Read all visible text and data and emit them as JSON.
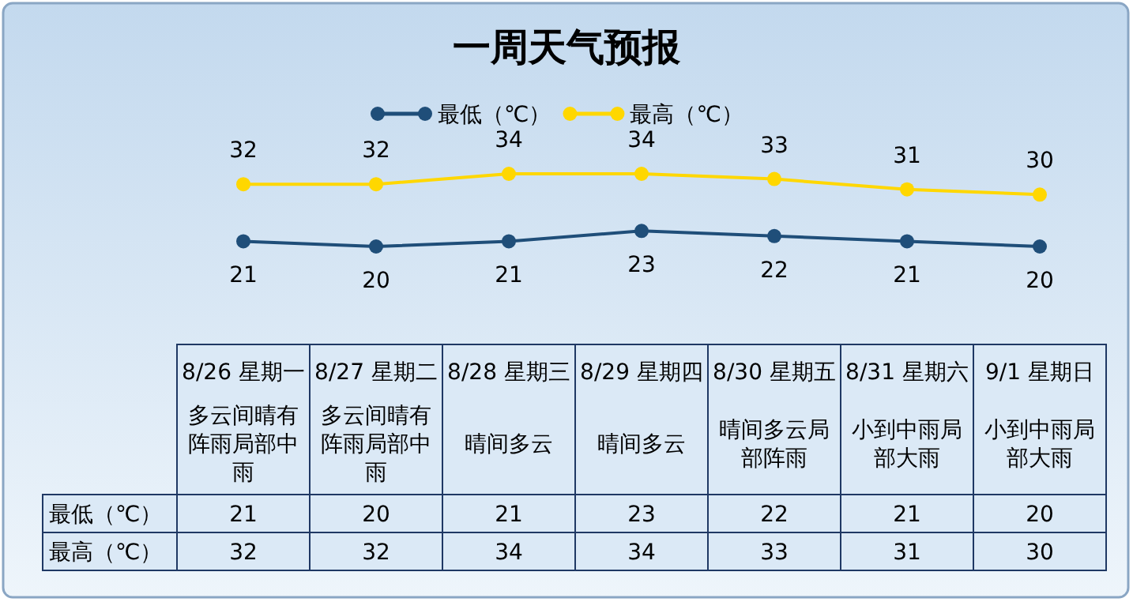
{
  "chart_data": [
    {
      "type": "line",
      "title": "一周天气预报",
      "categories": [
        null,
        null,
        null,
        null,
        null,
        null,
        null
      ],
      "series": [
        {
          "name": "最低（℃）",
          "color": "#1f4e79",
          "values": [
            21,
            20,
            21,
            23,
            22,
            21,
            20
          ],
          "value_labels": [
            "21",
            "20",
            "21",
            "23",
            "22",
            "21",
            "20"
          ]
        },
        {
          "name": "最高（℃）",
          "color": "#ffd700",
          "values": [
            32,
            32,
            34,
            34,
            33,
            31,
            30
          ],
          "value_labels": [
            "32",
            "32",
            "34",
            "34",
            "33",
            "31",
            "30"
          ]
        }
      ],
      "legend": "top",
      "marker": "circle",
      "line_style": "solid"
    },
    {
      "type": "heatmap",
      "categories": [
        "8/26 星期一多云间晴有阵雨局部中雨",
        "8/27 星期二多云间晴有阵雨局部中雨",
        "8/28 星期三晴间多云",
        "8/29 星期四晴间多云",
        "8/30 星期五晴间多云局部阵雨",
        "8/31 星期六小到中雨局部大雨",
        "9/1  星期日小到中雨局部大雨"
      ],
      "y_categories": [
        "最低（℃）",
        "最高（℃）"
      ],
      "cells": [
        [
          21,
          20,
          21,
          23,
          22,
          21,
          20
        ],
        [
          32,
          32,
          34,
          34,
          33,
          31,
          30
        ]
      ],
      "data_labels": true
    }
  ]
}
